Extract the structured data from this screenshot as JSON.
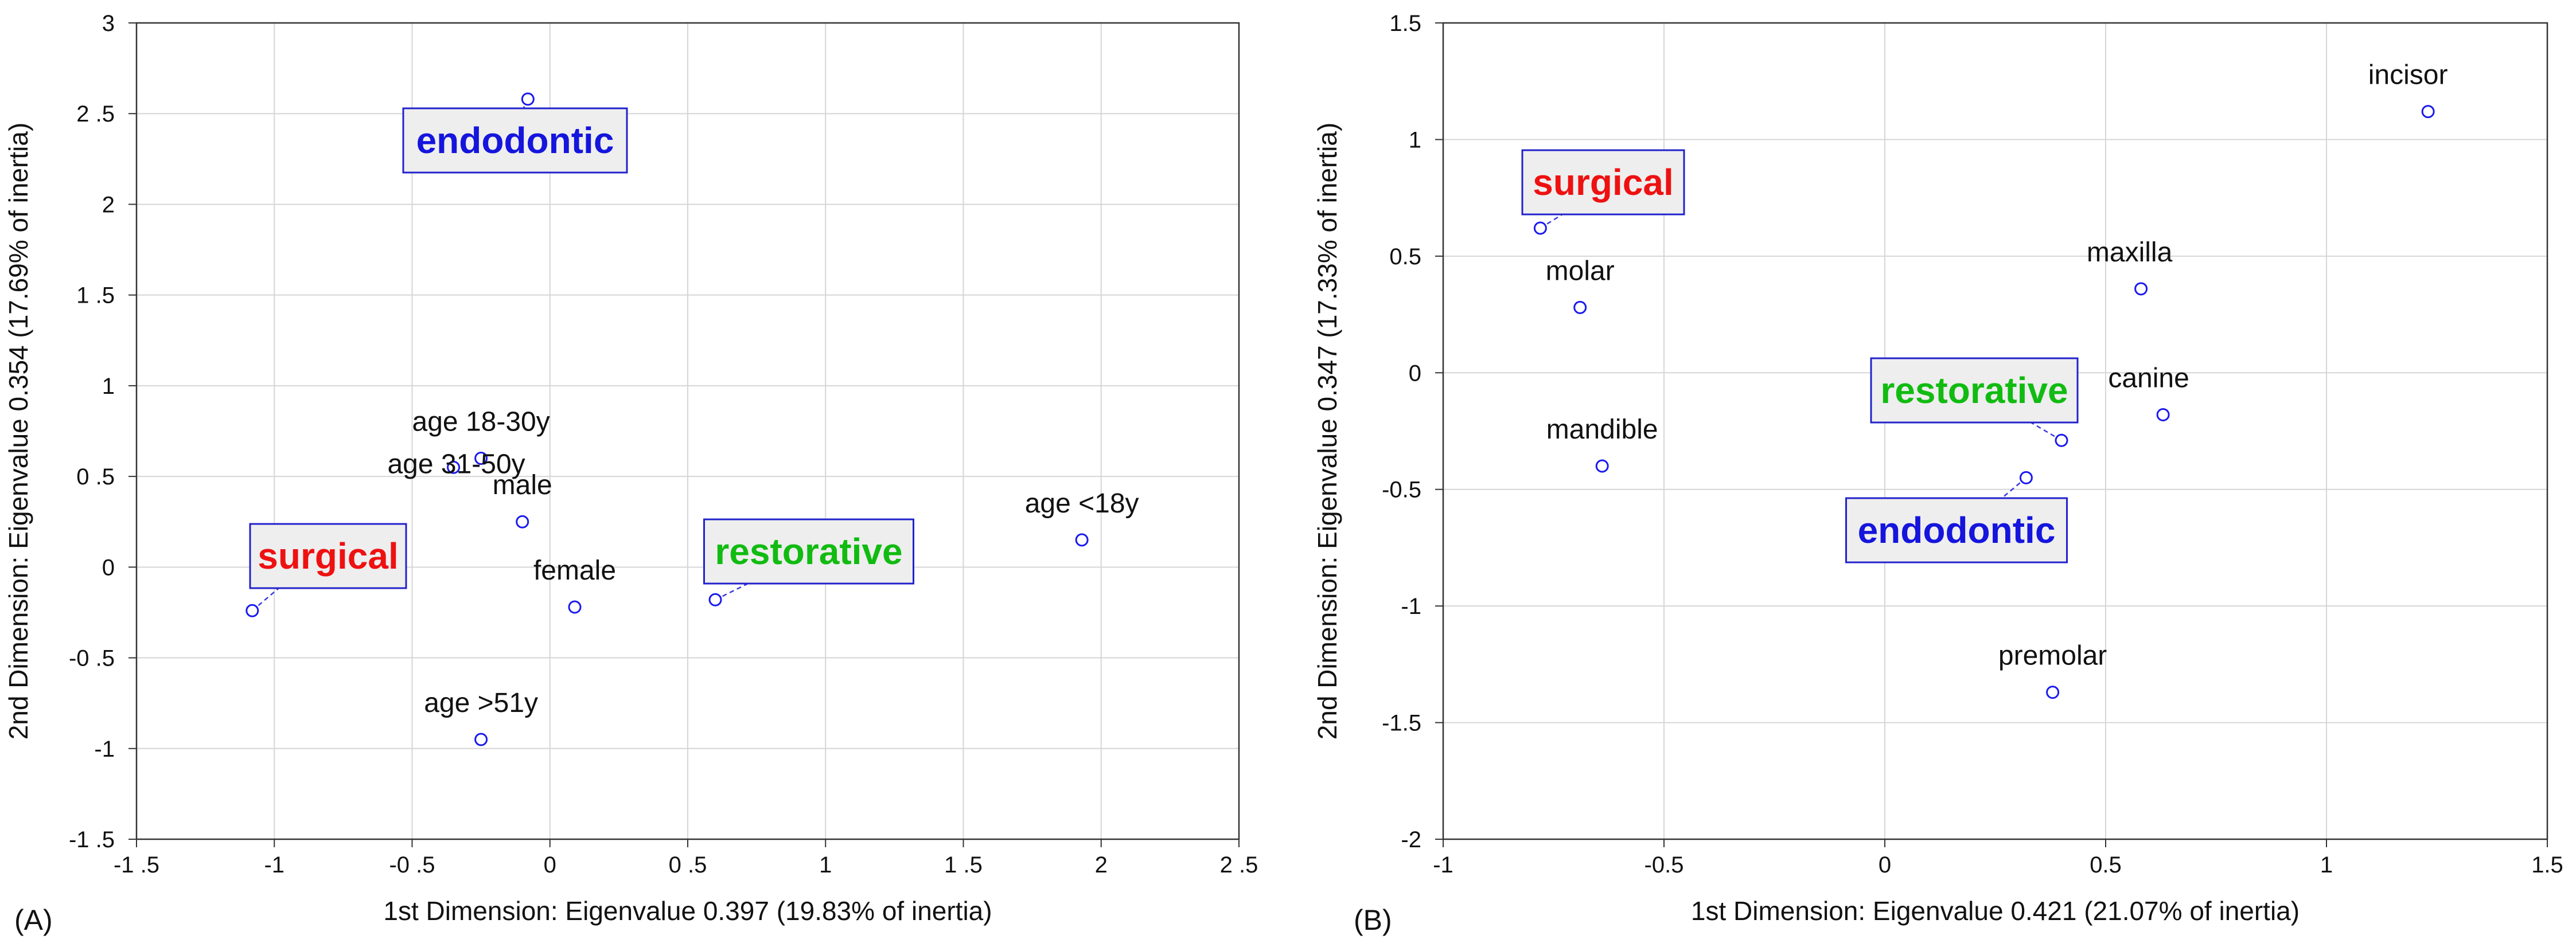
{
  "chart_data": [
    {
      "type": "scatter",
      "panel_label": "(A)",
      "xlabel": "1st Dimension: Eigenvalue 0.397 (19.83% of inertia)",
      "ylabel": "2nd Dimension: Eigenvalue 0.354 (17.69% of inertia)",
      "xlim": [
        -1.5,
        2.5
      ],
      "ylim": [
        -1.5,
        3
      ],
      "xticks": [
        -1.5,
        -1,
        -0.5,
        0,
        0.5,
        1,
        1.5,
        2,
        2.5
      ],
      "xtick_labels": [
        "-1 .5",
        "-1",
        "-0 .5",
        "0",
        "0 .5",
        "1",
        "1 .5",
        "2",
        "2 .5"
      ],
      "yticks": [
        -1.5,
        -1,
        -0.5,
        0,
        0.5,
        1,
        1.5,
        2,
        2.5,
        3
      ],
      "ytick_labels": [
        "-1 .5",
        "-1",
        "-0 .5",
        "0",
        "0 .5",
        "1",
        "1 .5",
        "2",
        "2 .5",
        "3"
      ],
      "grid": true,
      "points": [
        {
          "label": "age 18-30y",
          "x": -0.25,
          "y": 0.6
        },
        {
          "label": "age 31-50y",
          "x": -0.35,
          "y": 0.55
        },
        {
          "label": "male",
          "x": -0.1,
          "y": 0.25
        },
        {
          "label": "female",
          "x": 0.09,
          "y": -0.22
        },
        {
          "label": "age <18y",
          "x": 1.93,
          "y": 0.15
        },
        {
          "label": "age >51y",
          "x": -0.25,
          "y": -0.95
        }
      ],
      "categories": [
        {
          "label": "endodontic",
          "color": "#1515dd",
          "x": -0.08,
          "y": 2.58
        },
        {
          "label": "surgical",
          "color": "#ee1111",
          "x": -1.08,
          "y": -0.24
        },
        {
          "label": "restorative",
          "color": "#11bb11",
          "x": 0.6,
          "y": -0.18
        }
      ]
    },
    {
      "type": "scatter",
      "panel_label": "(B)",
      "xlabel": "1st Dimension: Eigenvalue 0.421 (21.07% of inertia)",
      "ylabel": "2nd Dimension: Eigenvalue 0.347 (17.33% of inertia)",
      "xlim": [
        -1,
        1.5
      ],
      "ylim": [
        -2,
        1.5
      ],
      "xticks": [
        -1,
        -0.5,
        0,
        0.5,
        1,
        1.5
      ],
      "xtick_labels": [
        "-1",
        "-0.5",
        "0",
        "0.5",
        "1",
        "1.5"
      ],
      "yticks": [
        -2,
        -1.5,
        -1,
        -0.5,
        0,
        0.5,
        1,
        1.5
      ],
      "ytick_labels": [
        "-2",
        "-1.5",
        "-1",
        "-0.5",
        "0",
        "0.5",
        "1",
        "1.5"
      ],
      "grid": true,
      "points": [
        {
          "label": "incisor",
          "x": 1.23,
          "y": 1.12
        },
        {
          "label": "maxilla",
          "x": 0.58,
          "y": 0.36
        },
        {
          "label": "molar",
          "x": -0.69,
          "y": 0.28
        },
        {
          "label": "canine",
          "x": 0.63,
          "y": -0.18
        },
        {
          "label": "mandible",
          "x": -0.64,
          "y": -0.4
        },
        {
          "label": "premolar",
          "x": 0.38,
          "y": -1.37
        }
      ],
      "categories": [
        {
          "label": "surgical",
          "color": "#ee1111",
          "x": -0.78,
          "y": 0.62
        },
        {
          "label": "restorative",
          "color": "#11bb11",
          "x": 0.4,
          "y": -0.29
        },
        {
          "label": "endodontic",
          "color": "#1515dd",
          "x": 0.32,
          "y": -0.45
        }
      ]
    }
  ]
}
